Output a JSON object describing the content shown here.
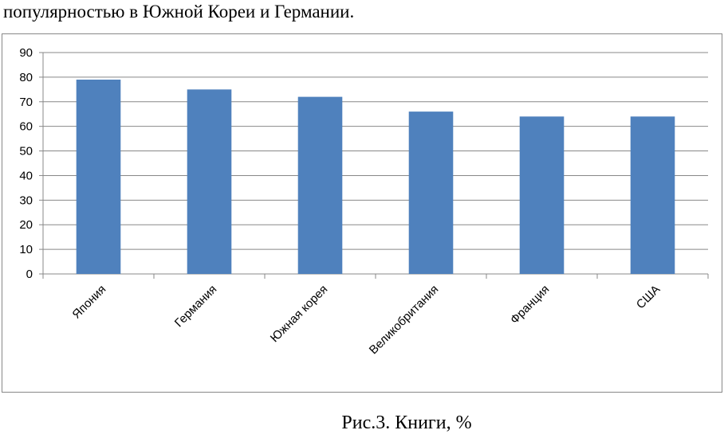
{
  "intro_text": "популярностью в Южной Кореи и Германии.",
  "caption": "Рис.3. Книги, %",
  "chart_data": {
    "type": "bar",
    "categories": [
      "Япония",
      "Германия",
      "Южная корея",
      "Великобритания",
      "Франция",
      "США"
    ],
    "values": [
      79,
      75,
      72,
      66,
      64,
      64
    ],
    "color": "#4f81bd",
    "ylim": [
      0,
      90
    ],
    "yticks": [
      0,
      10,
      20,
      30,
      40,
      50,
      60,
      70,
      80,
      90
    ],
    "grid": true
  }
}
